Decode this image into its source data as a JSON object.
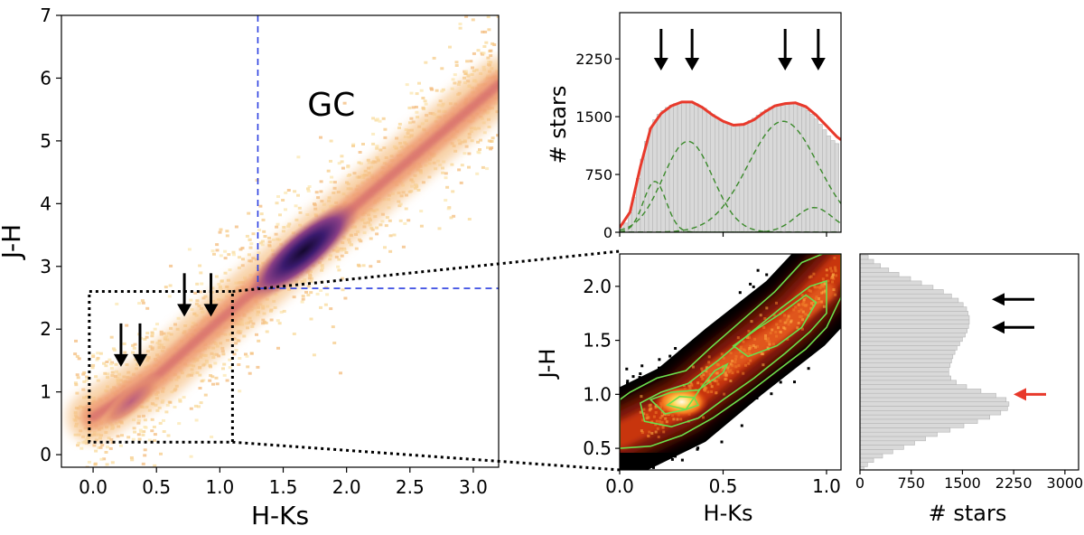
{
  "chart_data": [
    {
      "type": "heatmap",
      "name": "main-ccd",
      "title": "",
      "xlabel": "H-Ks",
      "ylabel": "J-H",
      "xlim": [
        -0.25,
        3.2
      ],
      "ylim": [
        -0.2,
        7.0
      ],
      "xticks": [
        0.0,
        0.5,
        1.0,
        1.5,
        2.0,
        2.5,
        3.0
      ],
      "yticks": [
        0,
        1,
        2,
        3,
        4,
        5,
        6,
        7
      ],
      "xtick_labels": [
        "0.0",
        "0.5",
        "1.0",
        "1.5",
        "2.0",
        "2.5",
        "3.0"
      ],
      "ytick_labels": [
        "0",
        "1",
        "2",
        "3",
        "4",
        "5",
        "6",
        "7"
      ],
      "annotation": "GC",
      "annotation_pos": [
        1.88,
        5.4
      ],
      "density_ridge": [
        [
          0.0,
          0.6
        ],
        [
          0.5,
          1.25
        ],
        [
          1.0,
          2.15
        ],
        [
          1.5,
          3.0
        ],
        [
          2.0,
          3.85
        ],
        [
          2.5,
          4.7
        ],
        [
          3.2,
          5.9
        ]
      ],
      "density_peaks": [
        {
          "x": 1.66,
          "y": 3.25,
          "strength": 1.0
        },
        {
          "x": 0.3,
          "y": 0.85,
          "strength": 0.35
        }
      ],
      "gc_selection_lines": {
        "vertical_x": 1.3,
        "horizontal_y": 2.65
      },
      "zoom_box": {
        "x": [
          -0.03,
          1.1
        ],
        "y": [
          0.2,
          2.6
        ]
      },
      "arrows": [
        {
          "x": 0.22,
          "y_tip": 1.4
        },
        {
          "x": 0.37,
          "y_tip": 1.4
        },
        {
          "x": 0.72,
          "y_tip": 2.2
        },
        {
          "x": 0.93,
          "y_tip": 2.2
        }
      ]
    },
    {
      "type": "bar",
      "name": "hks-histogram",
      "xlabel": "",
      "ylabel": "# stars",
      "xlim": [
        0.0,
        1.07
      ],
      "ylim": [
        0,
        2850
      ],
      "yticks": [
        0,
        750,
        1500,
        2250
      ],
      "ytick_labels": [
        "0",
        "750",
        "1500",
        "2250"
      ],
      "bin_centers": [
        0.01,
        0.03,
        0.05,
        0.07,
        0.09,
        0.11,
        0.13,
        0.15,
        0.17,
        0.19,
        0.21,
        0.23,
        0.25,
        0.27,
        0.29,
        0.31,
        0.33,
        0.35,
        0.37,
        0.39,
        0.41,
        0.43,
        0.45,
        0.47,
        0.49,
        0.51,
        0.53,
        0.55,
        0.57,
        0.59,
        0.61,
        0.63,
        0.65,
        0.67,
        0.69,
        0.71,
        0.73,
        0.75,
        0.77,
        0.79,
        0.81,
        0.83,
        0.85,
        0.87,
        0.89,
        0.91,
        0.93,
        0.95,
        0.97,
        0.99,
        1.01,
        1.03,
        1.05
      ],
      "counts": [
        60,
        120,
        250,
        450,
        700,
        950,
        1180,
        1350,
        1460,
        1530,
        1580,
        1620,
        1650,
        1670,
        1680,
        1690,
        1700,
        1690,
        1670,
        1640,
        1610,
        1570,
        1530,
        1490,
        1450,
        1420,
        1400,
        1390,
        1390,
        1400,
        1420,
        1450,
        1480,
        1520,
        1560,
        1590,
        1620,
        1640,
        1660,
        1670,
        1680,
        1680,
        1670,
        1650,
        1620,
        1580,
        1530,
        1470,
        1400,
        1330,
        1250,
        1190,
        1150
      ],
      "fit_total": [
        [
          0.0,
          60
        ],
        [
          0.05,
          260
        ],
        [
          0.1,
          850
        ],
        [
          0.15,
          1350
        ],
        [
          0.2,
          1540
        ],
        [
          0.25,
          1640
        ],
        [
          0.3,
          1690
        ],
        [
          0.35,
          1690
        ],
        [
          0.4,
          1620
        ],
        [
          0.45,
          1520
        ],
        [
          0.5,
          1440
        ],
        [
          0.55,
          1390
        ],
        [
          0.6,
          1400
        ],
        [
          0.65,
          1460
        ],
        [
          0.7,
          1560
        ],
        [
          0.75,
          1640
        ],
        [
          0.8,
          1670
        ],
        [
          0.85,
          1680
        ],
        [
          0.9,
          1630
        ],
        [
          0.95,
          1520
        ],
        [
          1.0,
          1380
        ],
        [
          1.05,
          1240
        ],
        [
          1.07,
          1200
        ]
      ],
      "fit_components": [
        {
          "mu": 0.17,
          "sigma": 0.055,
          "amp": 660
        },
        {
          "mu": 0.33,
          "sigma": 0.12,
          "amp": 1180
        },
        {
          "mu": 0.79,
          "sigma": 0.17,
          "amp": 1440
        },
        {
          "mu": 0.94,
          "sigma": 0.09,
          "amp": 320
        }
      ],
      "colors": {
        "total_fit": "#e8392b",
        "components": "#3a8a2a",
        "bars": "#d9d9d9"
      },
      "arrows_x": [
        0.2,
        0.35,
        0.8,
        0.96
      ]
    },
    {
      "type": "heatmap",
      "name": "zoom-ccd",
      "xlabel": "H-Ks",
      "ylabel": "J-H",
      "xlim": [
        0.0,
        1.07
      ],
      "ylim": [
        0.3,
        2.3
      ],
      "xticks": [
        0.0,
        0.5,
        1.0
      ],
      "yticks": [
        0.5,
        1.0,
        1.5,
        2.0
      ],
      "xtick_labels": [
        "0.0",
        "0.5",
        "1.0"
      ],
      "ytick_labels": [
        "0.5",
        "1.0",
        "1.5",
        "2.0"
      ],
      "ridge": [
        [
          0.0,
          0.62
        ],
        [
          0.3,
          0.9
        ],
        [
          0.55,
          1.3
        ],
        [
          0.85,
          1.75
        ],
        [
          1.07,
          2.2
        ]
      ],
      "peak": {
        "x": 0.3,
        "y": 0.93
      },
      "contour_color": "#6be04d"
    },
    {
      "type": "bar",
      "name": "jh-histogram",
      "orientation": "horizontal",
      "xlabel": "# stars",
      "ylabel": "",
      "xlim": [
        0,
        3200
      ],
      "ylim": [
        0.3,
        2.3
      ],
      "xticks": [
        0,
        750,
        1500,
        2250,
        3000
      ],
      "xtick_labels": [
        "0",
        "750",
        "1500",
        "2250",
        "3000"
      ],
      "bin_centers": [
        0.31,
        0.35,
        0.39,
        0.43,
        0.47,
        0.51,
        0.55,
        0.59,
        0.63,
        0.67,
        0.71,
        0.75,
        0.79,
        0.83,
        0.87,
        0.91,
        0.95,
        0.99,
        1.03,
        1.07,
        1.11,
        1.15,
        1.19,
        1.23,
        1.27,
        1.31,
        1.35,
        1.39,
        1.43,
        1.47,
        1.51,
        1.55,
        1.59,
        1.63,
        1.67,
        1.71,
        1.75,
        1.79,
        1.83,
        1.87,
        1.91,
        1.95,
        1.99,
        2.03,
        2.07,
        2.11,
        2.15,
        2.19,
        2.23,
        2.27
      ],
      "counts": [
        60,
        110,
        200,
        330,
        480,
        640,
        800,
        960,
        1130,
        1320,
        1520,
        1720,
        1900,
        2060,
        2160,
        2180,
        2140,
        1990,
        1770,
        1560,
        1410,
        1330,
        1300,
        1300,
        1320,
        1340,
        1360,
        1390,
        1420,
        1460,
        1500,
        1540,
        1570,
        1590,
        1600,
        1600,
        1580,
        1560,
        1510,
        1440,
        1340,
        1220,
        1070,
        900,
        740,
        570,
        420,
        300,
        200,
        120
      ],
      "black_arrows_y": [
        1.62,
        1.88
      ],
      "red_arrow_y": 1.0,
      "colors": {
        "red_arrow": "#e8392b",
        "bars": "#d9d9d9"
      }
    }
  ],
  "connectors": "dotted zoom lines linking the main-panel box to the zoom panel"
}
